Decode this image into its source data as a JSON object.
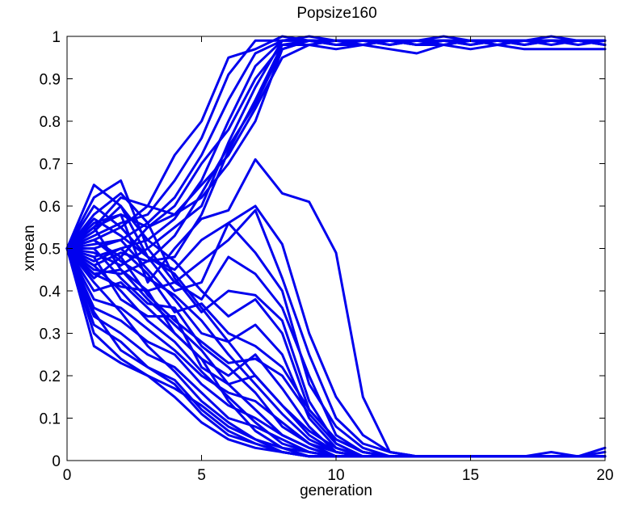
{
  "chart_data": {
    "type": "line",
    "title": "Popsize160",
    "xlabel": "generation",
    "ylabel": "xmean",
    "xlim": [
      0,
      20
    ],
    "ylim": [
      0,
      1
    ],
    "xticks": [
      0,
      5,
      10,
      15,
      20
    ],
    "yticks": [
      0,
      0.1,
      0.2,
      0.3,
      0.4,
      0.5,
      0.6,
      0.7,
      0.8,
      0.9,
      1
    ],
    "grid": false,
    "line_color": "#0000ee",
    "x": [
      0,
      1,
      2,
      3,
      4,
      5,
      6,
      7,
      8,
      9,
      10,
      11,
      12,
      13,
      14,
      15,
      16,
      17,
      18,
      19,
      20
    ],
    "series": [
      {
        "values": [
          0.5,
          0.55,
          0.62,
          0.6,
          0.72,
          0.8,
          0.95,
          0.97,
          1.0,
          0.99,
          0.99,
          0.99,
          0.99,
          0.98,
          0.99,
          0.99,
          0.99,
          0.99,
          0.99,
          0.99,
          0.99
        ]
      },
      {
        "values": [
          0.5,
          0.53,
          0.56,
          0.58,
          0.66,
          0.76,
          0.91,
          0.99,
          0.99,
          0.99,
          0.99,
          0.99,
          0.98,
          0.99,
          0.99,
          0.99,
          0.99,
          0.98,
          0.99,
          0.99,
          0.99
        ]
      },
      {
        "values": [
          0.5,
          0.5,
          0.52,
          0.56,
          0.62,
          0.72,
          0.85,
          0.96,
          0.99,
          1.0,
          0.99,
          0.99,
          0.99,
          0.99,
          1.0,
          0.99,
          0.99,
          0.99,
          1.0,
          0.99,
          0.99
        ]
      },
      {
        "values": [
          0.5,
          0.48,
          0.5,
          0.52,
          0.57,
          0.66,
          0.8,
          0.93,
          0.99,
          0.99,
          0.99,
          0.98,
          0.99,
          0.99,
          0.98,
          0.99,
          0.99,
          0.99,
          0.99,
          0.99,
          0.98
        ]
      },
      {
        "values": [
          0.5,
          0.52,
          0.48,
          0.55,
          0.6,
          0.7,
          0.78,
          0.9,
          0.98,
          0.99,
          0.99,
          0.99,
          0.99,
          0.98,
          0.99,
          0.99,
          0.98,
          0.99,
          0.99,
          0.99,
          0.99
        ]
      },
      {
        "values": [
          0.5,
          0.45,
          0.44,
          0.47,
          0.53,
          0.63,
          0.74,
          0.84,
          0.97,
          0.99,
          0.98,
          0.99,
          0.99,
          0.99,
          0.99,
          0.98,
          0.99,
          0.98,
          0.99,
          0.98,
          0.99
        ]
      },
      {
        "values": [
          0.5,
          0.55,
          0.58,
          0.55,
          0.58,
          0.65,
          0.72,
          0.83,
          0.95,
          0.98,
          0.97,
          0.98,
          0.97,
          0.96,
          0.98,
          0.97,
          0.98,
          0.97,
          0.97,
          0.97,
          0.97
        ]
      },
      {
        "values": [
          0.5,
          0.49,
          0.46,
          0.5,
          0.55,
          0.6,
          0.75,
          0.88,
          0.99,
          0.99,
          0.98,
          0.98,
          0.99,
          0.98,
          0.98,
          0.99,
          0.98,
          0.99,
          0.98,
          0.99,
          0.98
        ]
      },
      {
        "values": [
          0.5,
          0.6,
          0.55,
          0.6,
          0.58,
          0.62,
          0.7,
          0.8,
          0.97,
          0.99,
          0.99,
          0.99,
          0.99,
          0.99,
          0.99,
          0.98,
          0.99,
          0.99,
          0.99,
          0.99,
          0.98
        ]
      },
      {
        "values": [
          0.5,
          0.46,
          0.49,
          0.47,
          0.48,
          0.58,
          0.73,
          0.85,
          0.98,
          0.98,
          0.99,
          0.99,
          0.98,
          0.99,
          0.99,
          0.99,
          0.99,
          0.99,
          0.99,
          0.99,
          0.99
        ]
      },
      {
        "values": [
          0.5,
          0.56,
          0.58,
          0.42,
          0.5,
          0.57,
          0.59,
          0.71,
          0.63,
          0.61,
          0.49,
          0.15,
          0.02,
          0.01,
          0.01,
          0.01,
          0.01,
          0.01,
          0.01,
          0.01,
          0.01
        ]
      },
      {
        "values": [
          0.5,
          0.52,
          0.55,
          0.48,
          0.45,
          0.52,
          0.56,
          0.6,
          0.51,
          0.3,
          0.15,
          0.06,
          0.02,
          0.01,
          0.01,
          0.01,
          0.01,
          0.01,
          0.01,
          0.01,
          0.01
        ]
      },
      {
        "values": [
          0.5,
          0.44,
          0.45,
          0.4,
          0.42,
          0.47,
          0.52,
          0.59,
          0.43,
          0.25,
          0.1,
          0.04,
          0.02,
          0.01,
          0.01,
          0.01,
          0.01,
          0.01,
          0.02,
          0.01,
          0.01
        ]
      },
      {
        "values": [
          0.5,
          0.65,
          0.6,
          0.48,
          0.4,
          0.42,
          0.56,
          0.49,
          0.4,
          0.18,
          0.08,
          0.03,
          0.01,
          0.01,
          0.01,
          0.01,
          0.01,
          0.01,
          0.01,
          0.01,
          0.01
        ]
      },
      {
        "values": [
          0.5,
          0.62,
          0.66,
          0.5,
          0.42,
          0.38,
          0.48,
          0.44,
          0.36,
          0.2,
          0.06,
          0.02,
          0.01,
          0.01,
          0.01,
          0.01,
          0.01,
          0.01,
          0.01,
          0.01,
          0.01
        ]
      },
      {
        "values": [
          0.5,
          0.58,
          0.63,
          0.56,
          0.43,
          0.35,
          0.4,
          0.39,
          0.33,
          0.14,
          0.04,
          0.01,
          0.01,
          0.01,
          0.01,
          0.01,
          0.01,
          0.01,
          0.01,
          0.01,
          0.01
        ]
      },
      {
        "values": [
          0.5,
          0.54,
          0.6,
          0.52,
          0.47,
          0.4,
          0.34,
          0.38,
          0.3,
          0.12,
          0.05,
          0.02,
          0.01,
          0.01,
          0.01,
          0.01,
          0.01,
          0.01,
          0.01,
          0.01,
          0.03
        ]
      },
      {
        "values": [
          0.5,
          0.51,
          0.52,
          0.45,
          0.38,
          0.3,
          0.28,
          0.32,
          0.25,
          0.1,
          0.03,
          0.01,
          0.01,
          0.01,
          0.01,
          0.01,
          0.01,
          0.01,
          0.01,
          0.01,
          0.01
        ]
      },
      {
        "values": [
          0.5,
          0.47,
          0.5,
          0.44,
          0.35,
          0.37,
          0.3,
          0.27,
          0.22,
          0.12,
          0.05,
          0.02,
          0.01,
          0.01,
          0.01,
          0.01,
          0.01,
          0.01,
          0.01,
          0.01,
          0.01
        ]
      },
      {
        "values": [
          0.5,
          0.43,
          0.48,
          0.39,
          0.33,
          0.28,
          0.23,
          0.24,
          0.2,
          0.11,
          0.04,
          0.01,
          0.01,
          0.01,
          0.01,
          0.01,
          0.01,
          0.01,
          0.01,
          0.01,
          0.01
        ]
      },
      {
        "values": [
          0.5,
          0.4,
          0.42,
          0.36,
          0.3,
          0.24,
          0.2,
          0.25,
          0.17,
          0.08,
          0.02,
          0.01,
          0.01,
          0.01,
          0.01,
          0.01,
          0.01,
          0.01,
          0.01,
          0.01,
          0.01
        ]
      },
      {
        "values": [
          0.5,
          0.48,
          0.38,
          0.34,
          0.34,
          0.22,
          0.18,
          0.2,
          0.13,
          0.06,
          0.02,
          0.01,
          0.01,
          0.01,
          0.01,
          0.01,
          0.01,
          0.01,
          0.01,
          0.01,
          0.01
        ]
      },
      {
        "values": [
          0.5,
          0.38,
          0.36,
          0.31,
          0.26,
          0.2,
          0.16,
          0.14,
          0.09,
          0.04,
          0.01,
          0.01,
          0.01,
          0.01,
          0.01,
          0.01,
          0.01,
          0.01,
          0.01,
          0.01,
          0.01
        ]
      },
      {
        "values": [
          0.5,
          0.36,
          0.33,
          0.28,
          0.25,
          0.18,
          0.13,
          0.1,
          0.06,
          0.03,
          0.01,
          0.01,
          0.01,
          0.01,
          0.01,
          0.01,
          0.01,
          0.01,
          0.01,
          0.01,
          0.02
        ]
      },
      {
        "values": [
          0.5,
          0.34,
          0.3,
          0.25,
          0.22,
          0.16,
          0.1,
          0.08,
          0.05,
          0.02,
          0.01,
          0.01,
          0.01,
          0.01,
          0.01,
          0.01,
          0.01,
          0.01,
          0.01,
          0.01,
          0.01
        ]
      },
      {
        "values": [
          0.5,
          0.27,
          0.23,
          0.2,
          0.17,
          0.13,
          0.08,
          0.05,
          0.03,
          0.02,
          0.01,
          0.01,
          0.01,
          0.01,
          0.01,
          0.01,
          0.01,
          0.01,
          0.01,
          0.01,
          0.01
        ]
      },
      {
        "values": [
          0.5,
          0.32,
          0.28,
          0.22,
          0.18,
          0.11,
          0.06,
          0.04,
          0.02,
          0.01,
          0.01,
          0.01,
          0.01,
          0.01,
          0.01,
          0.01,
          0.01,
          0.01,
          0.01,
          0.01,
          0.01
        ]
      },
      {
        "values": [
          0.5,
          0.3,
          0.24,
          0.2,
          0.15,
          0.09,
          0.05,
          0.03,
          0.02,
          0.01,
          0.01,
          0.01,
          0.01,
          0.01,
          0.01,
          0.01,
          0.01,
          0.01,
          0.01,
          0.01,
          0.01
        ]
      },
      {
        "values": [
          0.5,
          0.42,
          0.35,
          0.27,
          0.21,
          0.14,
          0.09,
          0.05,
          0.02,
          0.01,
          0.01,
          0.01,
          0.01,
          0.01,
          0.01,
          0.01,
          0.01,
          0.01,
          0.01,
          0.01,
          0.01
        ]
      },
      {
        "values": [
          0.5,
          0.46,
          0.4,
          0.33,
          0.28,
          0.21,
          0.15,
          0.09,
          0.04,
          0.02,
          0.01,
          0.01,
          0.01,
          0.01,
          0.01,
          0.01,
          0.01,
          0.01,
          0.01,
          0.01,
          0.01
        ]
      },
      {
        "values": [
          0.5,
          0.55,
          0.45,
          0.38,
          0.32,
          0.26,
          0.18,
          0.12,
          0.06,
          0.03,
          0.01,
          0.01,
          0.01,
          0.01,
          0.01,
          0.01,
          0.01,
          0.01,
          0.01,
          0.01,
          0.01
        ]
      },
      {
        "values": [
          0.5,
          0.5,
          0.43,
          0.37,
          0.36,
          0.27,
          0.22,
          0.16,
          0.08,
          0.04,
          0.02,
          0.01,
          0.01,
          0.01,
          0.01,
          0.01,
          0.01,
          0.01,
          0.01,
          0.01,
          0.01
        ]
      },
      {
        "values": [
          0.5,
          0.44,
          0.41,
          0.4,
          0.3,
          0.24,
          0.14,
          0.07,
          0.03,
          0.01,
          0.01,
          0.01,
          0.01,
          0.01,
          0.01,
          0.01,
          0.01,
          0.01,
          0.01,
          0.01,
          0.01
        ]
      },
      {
        "values": [
          0.5,
          0.35,
          0.26,
          0.22,
          0.19,
          0.12,
          0.07,
          0.04,
          0.02,
          0.01,
          0.01,
          0.01,
          0.01,
          0.01,
          0.01,
          0.01,
          0.01,
          0.01,
          0.01,
          0.01,
          0.01
        ]
      },
      {
        "values": [
          0.5,
          0.52,
          0.47,
          0.43,
          0.39,
          0.33,
          0.25,
          0.18,
          0.11,
          0.05,
          0.02,
          0.01,
          0.01,
          0.01,
          0.01,
          0.01,
          0.01,
          0.01,
          0.01,
          0.01,
          0.01
        ]
      },
      {
        "values": [
          0.5,
          0.57,
          0.53,
          0.48,
          0.44,
          0.36,
          0.28,
          0.2,
          0.13,
          0.07,
          0.03,
          0.01,
          0.01,
          0.01,
          0.01,
          0.01,
          0.01,
          0.01,
          0.01,
          0.01,
          0.01
        ]
      }
    ]
  }
}
